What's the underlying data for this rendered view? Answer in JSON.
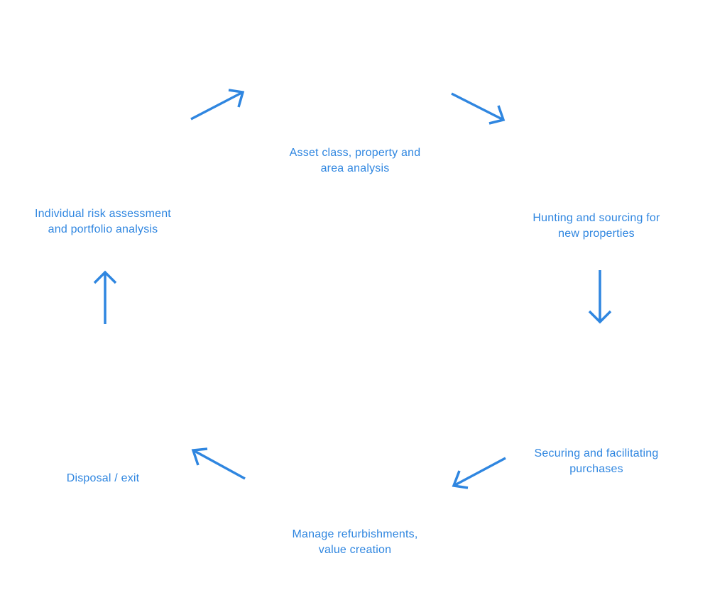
{
  "diagram": {
    "accent_color": "#2f86e0",
    "steps": [
      {
        "id": "asset-analysis",
        "lines": [
          "Asset class, property and",
          "area analysis"
        ]
      },
      {
        "id": "hunting-sourcing",
        "lines": [
          "Hunting and sourcing for",
          "new properties"
        ]
      },
      {
        "id": "securing-purchases",
        "lines": [
          "Securing and facilitating",
          "purchases"
        ]
      },
      {
        "id": "manage-refurbishments",
        "lines": [
          "Manage refurbishments,",
          "value creation"
        ]
      },
      {
        "id": "disposal-exit",
        "lines": [
          "Disposal / exit"
        ]
      },
      {
        "id": "risk-portfolio",
        "lines": [
          "Individual risk assessment",
          "and portfolio analysis"
        ]
      }
    ]
  }
}
